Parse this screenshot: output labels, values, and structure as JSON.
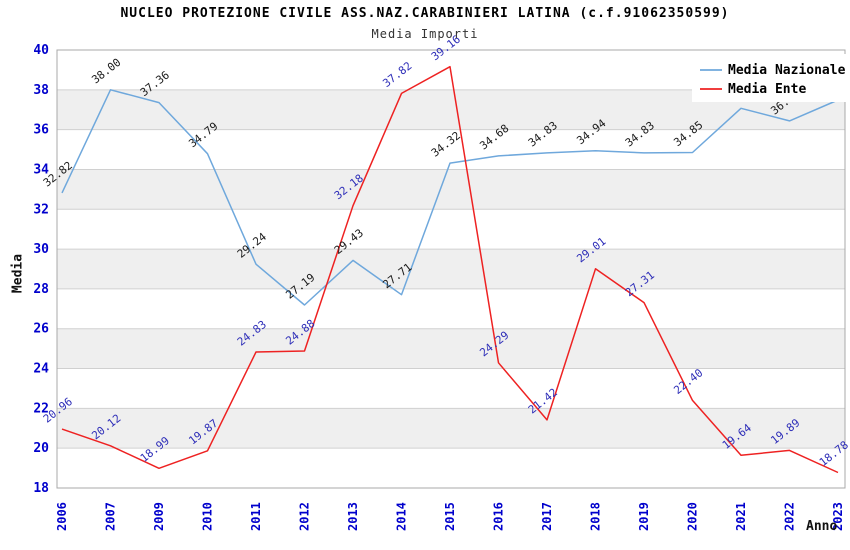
{
  "chart_data": {
    "type": "line",
    "title": "NUCLEO PROTEZIONE CIVILE ASS.NAZ.CARABINIERI LATINA (c.f.91062350599)",
    "subtitle": "Media Importi",
    "xlabel": "Anno",
    "ylabel": "Media",
    "x": [
      2006,
      2007,
      2009,
      2010,
      2011,
      2012,
      2013,
      2014,
      2015,
      2016,
      2017,
      2018,
      2019,
      2020,
      2021,
      2022,
      2023
    ],
    "series": [
      {
        "name": "Media Nazionale",
        "color": "#6fa8dc",
        "label_color": "#1a1a1a",
        "values": [
          32.82,
          38.0,
          37.36,
          34.79,
          29.24,
          27.19,
          29.43,
          27.71,
          34.32,
          34.68,
          34.83,
          34.94,
          34.83,
          34.85,
          37.07,
          36.44,
          37.49
        ]
      },
      {
        "name": "Media Ente",
        "color": "#ee2222",
        "label_color": "#2e2eb8",
        "values": [
          20.96,
          20.12,
          18.99,
          19.87,
          24.83,
          24.88,
          32.18,
          37.82,
          39.16,
          24.29,
          21.42,
          29.01,
          27.31,
          22.4,
          19.64,
          19.89,
          18.78
        ]
      }
    ],
    "ylim": [
      18,
      40
    ],
    "ytick_step": 2,
    "grid": true,
    "band_colors": [
      "#ffffff",
      "#efefef"
    ],
    "legend_position": "top-right",
    "notes": "2021 e 2022 Media Nazionale labels partially hidden behind legend box; values estimated from line position."
  },
  "style": {
    "tick_label_color": "#0000cc",
    "grid_color": "#d0d0d0",
    "border_color": "#a8a8a8",
    "legend_text_color": "#000000"
  }
}
